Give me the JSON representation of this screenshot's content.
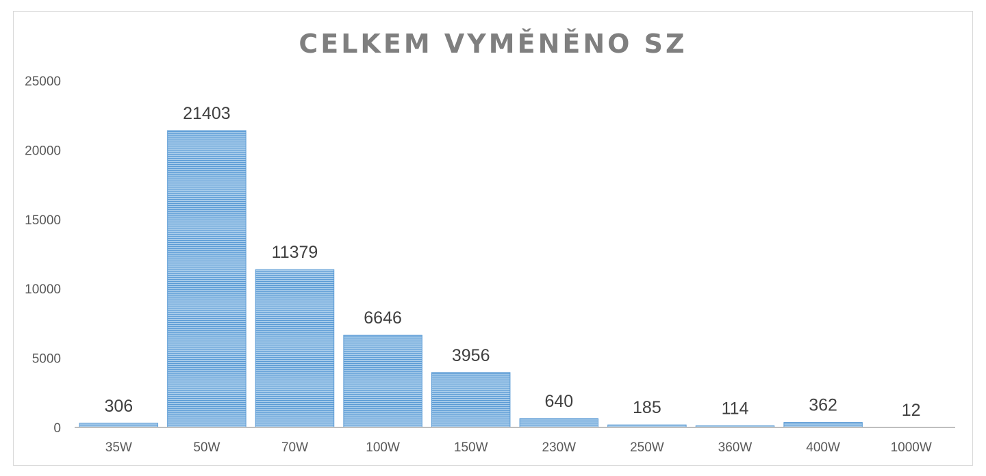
{
  "chart_data": {
    "type": "bar",
    "title": "CELKEM VYMĚNĚNO SZ",
    "xlabel": "",
    "ylabel": "",
    "categories": [
      "35W",
      "50W",
      "70W",
      "100W",
      "150W",
      "230W",
      "250W",
      "360W",
      "400W",
      "1000W"
    ],
    "values": [
      306,
      21403,
      11379,
      6646,
      3956,
      640,
      185,
      114,
      362,
      12
    ],
    "ylim": [
      0,
      25000
    ],
    "yticks": [
      0,
      5000,
      10000,
      15000,
      20000,
      25000
    ],
    "grid": false,
    "legend": "none",
    "data_labels": true,
    "colors": {
      "bar_fill": "#9cc3e6",
      "bar_stripe": "#5b9bd5",
      "axis": "#bfbfbf",
      "title": "#7f7f7f"
    }
  }
}
